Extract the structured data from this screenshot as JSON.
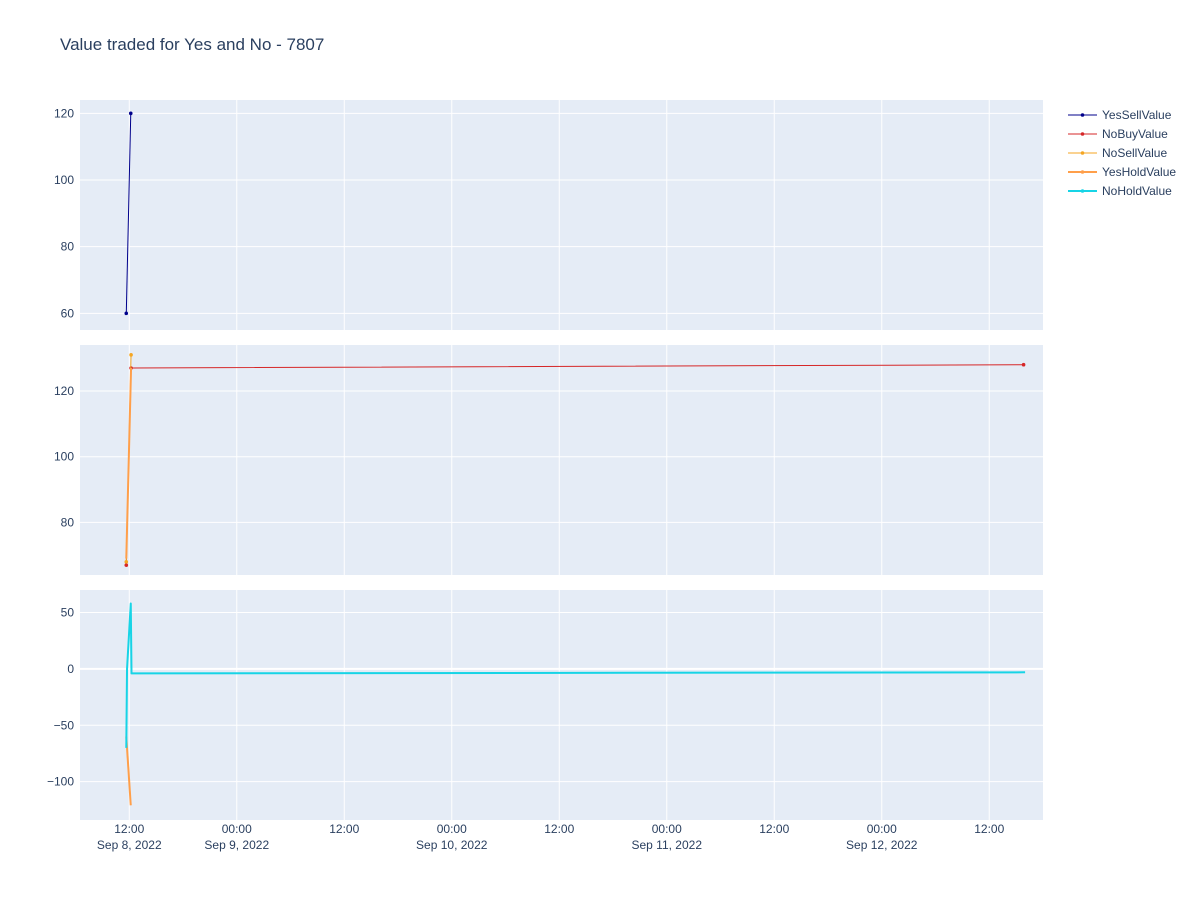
{
  "title": "Value traded for Yes and No - 7807",
  "colors": {
    "plot_bg": "#e5ecf6",
    "grid": "#ffffff",
    "text": "#2a3f5f",
    "YesSellValue": "#00008b",
    "NoBuyValue": "#d62728",
    "NoSellValue": "#f5a623",
    "YesHoldValue": "#ff9f4a",
    "NoHoldValue": "#17d4e6"
  },
  "legend": {
    "placement": "right",
    "items": [
      "YesSellValue",
      "NoBuyValue",
      "NoSellValue",
      "YesHoldValue",
      "NoHoldValue"
    ]
  },
  "x_ticks": [
    {
      "t": "2022-09-08T12:00",
      "l1": "12:00",
      "l2": "Sep 8, 2022"
    },
    {
      "t": "2022-09-09T00:00",
      "l1": "00:00",
      "l2": "Sep 9, 2022"
    },
    {
      "t": "2022-09-09T12:00",
      "l1": "12:00",
      "l2": ""
    },
    {
      "t": "2022-09-10T00:00",
      "l1": "00:00",
      "l2": "Sep 10, 2022"
    },
    {
      "t": "2022-09-10T12:00",
      "l1": "12:00",
      "l2": ""
    },
    {
      "t": "2022-09-11T00:00",
      "l1": "00:00",
      "l2": "Sep 11, 2022"
    },
    {
      "t": "2022-09-11T12:00",
      "l1": "12:00",
      "l2": ""
    },
    {
      "t": "2022-09-12T00:00",
      "l1": "00:00",
      "l2": "Sep 12, 2022"
    },
    {
      "t": "2022-09-12T12:00",
      "l1": "12:00",
      "l2": ""
    }
  ],
  "chart_data": {
    "type": "line",
    "title": "Value traded for Yes and No - 7807",
    "xlim": [
      "2022-09-08T06:30",
      "2022-09-12T18:00"
    ],
    "grid": true,
    "legend_placement": "right",
    "panels": [
      {
        "ylim": [
          55,
          124
        ],
        "yticks": [
          60,
          80,
          100,
          120
        ],
        "series": [
          {
            "name": "YesSellValue",
            "mode": "lines+markers",
            "width": 1,
            "points": [
              [
                "2022-09-08T11:40",
                60
              ],
              [
                "2022-09-08T12:10",
                120
              ]
            ]
          }
        ]
      },
      {
        "ylim": [
          64,
          134
        ],
        "yticks": [
          80,
          100,
          120
        ],
        "series": [
          {
            "name": "NoBuyValue",
            "mode": "lines+markers",
            "width": 1,
            "points": [
              [
                "2022-09-08T11:40",
                67
              ],
              [
                "2022-09-08T12:12",
                127
              ],
              [
                "2022-09-12T15:50",
                128
              ]
            ]
          },
          {
            "name": "NoSellValue",
            "mode": "lines+markers",
            "width": 1,
            "points": [
              [
                "2022-09-08T11:40",
                68
              ],
              [
                "2022-09-08T12:12",
                131
              ]
            ]
          },
          {
            "name": "YesHoldValue",
            "mode": "lines",
            "width": 2,
            "points": [
              [
                "2022-09-08T11:40",
                69
              ],
              [
                "2022-09-08T12:12",
                127
              ]
            ]
          }
        ]
      },
      {
        "ylim": [
          -134,
          70
        ],
        "yticks": [
          -100,
          -50,
          0,
          50
        ],
        "series": [
          {
            "name": "YesHoldValue",
            "mode": "lines",
            "width": 2,
            "points": [
              [
                "2022-09-08T11:40",
                -60
              ],
              [
                "2022-09-08T12:10",
                -121
              ]
            ]
          },
          {
            "name": "NoHoldValue",
            "mode": "lines",
            "width": 2,
            "points": [
              [
                "2022-09-08T11:40",
                -70
              ],
              [
                "2022-09-08T11:45",
                0
              ],
              [
                "2022-09-08T12:10",
                58
              ],
              [
                "2022-09-08T12:15",
                -4
              ],
              [
                "2022-09-12T16:00",
                -3
              ]
            ]
          }
        ]
      }
    ]
  }
}
